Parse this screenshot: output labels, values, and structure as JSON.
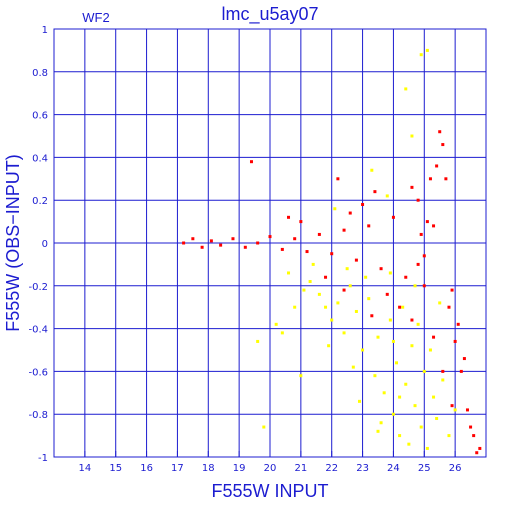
{
  "chart_data": {
    "type": "scatter",
    "title": "lmc_u5ay07",
    "panel_label": "WF2",
    "xlabel": "F555W INPUT",
    "ylabel": "F555W (OBS−INPUT)",
    "xlim": [
      13,
      27
    ],
    "ylim": [
      -1,
      1
    ],
    "x_ticks": [
      14,
      15,
      16,
      17,
      18,
      19,
      20,
      21,
      22,
      23,
      24,
      25,
      26
    ],
    "y_ticks": [
      -1,
      -0.8,
      -0.6,
      -0.4,
      -0.2,
      0,
      0.2,
      0.4,
      0.6,
      0.8,
      1
    ],
    "grid": true,
    "colors": {
      "axis": "#1c1cd0",
      "grid": "#1c1cd0",
      "series_red": "#ff0000",
      "series_yellow": "#ffff00"
    },
    "series": [
      {
        "color": "#ffff00",
        "points": [
          [
            19.6,
            -0.46
          ],
          [
            20.2,
            -0.38
          ],
          [
            20.8,
            -0.3
          ],
          [
            21.1,
            -0.22
          ],
          [
            21.3,
            -0.18
          ],
          [
            21.6,
            -0.24
          ],
          [
            21.8,
            -0.3
          ],
          [
            22.0,
            -0.36
          ],
          [
            22.2,
            -0.28
          ],
          [
            22.4,
            -0.42
          ],
          [
            22.6,
            -0.2
          ],
          [
            22.8,
            -0.32
          ],
          [
            23.0,
            -0.5
          ],
          [
            23.2,
            -0.26
          ],
          [
            23.4,
            -0.62
          ],
          [
            23.5,
            -0.44
          ],
          [
            23.7,
            -0.7
          ],
          [
            23.9,
            -0.36
          ],
          [
            24.0,
            -0.8
          ],
          [
            24.1,
            -0.56
          ],
          [
            24.2,
            -0.9
          ],
          [
            24.3,
            -0.3
          ],
          [
            24.4,
            -0.66
          ],
          [
            24.5,
            -0.94
          ],
          [
            24.6,
            -0.48
          ],
          [
            24.7,
            -0.76
          ],
          [
            24.8,
            -0.38
          ],
          [
            24.9,
            -0.86
          ],
          [
            25.0,
            -0.6
          ],
          [
            25.1,
            -0.96
          ],
          [
            25.2,
            -0.5
          ],
          [
            25.3,
            -0.72
          ],
          [
            25.4,
            -0.82
          ],
          [
            25.6,
            -0.64
          ],
          [
            25.8,
            -0.9
          ],
          [
            26.0,
            -0.78
          ],
          [
            22.1,
            0.16
          ],
          [
            23.3,
            0.34
          ],
          [
            23.8,
            0.22
          ],
          [
            24.6,
            0.5
          ],
          [
            25.1,
            0.9
          ],
          [
            24.9,
            0.88
          ],
          [
            24.4,
            0.72
          ],
          [
            20.4,
            -0.42
          ],
          [
            21.0,
            -0.62
          ],
          [
            21.9,
            -0.48
          ],
          [
            22.7,
            -0.58
          ],
          [
            23.6,
            -0.84
          ],
          [
            24.2,
            -0.72
          ],
          [
            19.8,
            -0.86
          ],
          [
            22.5,
            -0.12
          ],
          [
            23.1,
            -0.16
          ],
          [
            23.9,
            -0.14
          ],
          [
            24.7,
            -0.2
          ],
          [
            25.5,
            -0.28
          ],
          [
            22.9,
            -0.74
          ],
          [
            23.5,
            -0.88
          ],
          [
            21.4,
            -0.1
          ],
          [
            20.6,
            -0.14
          ],
          [
            24.0,
            -0.46
          ]
        ]
      },
      {
        "color": "#ff0000",
        "points": [
          [
            17.2,
            0.0
          ],
          [
            17.5,
            0.02
          ],
          [
            17.8,
            -0.02
          ],
          [
            18.1,
            0.01
          ],
          [
            18.4,
            -0.01
          ],
          [
            18.8,
            0.02
          ],
          [
            19.2,
            -0.02
          ],
          [
            19.6,
            0.0
          ],
          [
            20.0,
            0.03
          ],
          [
            20.4,
            -0.03
          ],
          [
            20.8,
            0.02
          ],
          [
            21.2,
            -0.04
          ],
          [
            21.6,
            0.04
          ],
          [
            22.0,
            -0.05
          ],
          [
            22.4,
            0.06
          ],
          [
            22.8,
            -0.08
          ],
          [
            23.2,
            0.08
          ],
          [
            23.6,
            -0.12
          ],
          [
            24.0,
            0.12
          ],
          [
            24.4,
            -0.16
          ],
          [
            24.8,
            0.2
          ],
          [
            25.0,
            -0.2
          ],
          [
            25.2,
            0.3
          ],
          [
            25.4,
            0.36
          ],
          [
            25.5,
            0.52
          ],
          [
            25.6,
            0.46
          ],
          [
            25.7,
            0.3
          ],
          [
            25.8,
            -0.3
          ],
          [
            26.0,
            -0.46
          ],
          [
            26.2,
            -0.6
          ],
          [
            26.4,
            -0.78
          ],
          [
            26.6,
            -0.9
          ],
          [
            26.8,
            -0.96
          ],
          [
            26.3,
            -0.54
          ],
          [
            26.1,
            -0.38
          ],
          [
            25.9,
            -0.22
          ],
          [
            25.3,
            -0.44
          ],
          [
            24.6,
            -0.36
          ],
          [
            24.2,
            -0.3
          ],
          [
            23.8,
            -0.24
          ],
          [
            22.6,
            0.14
          ],
          [
            23.0,
            0.18
          ],
          [
            23.4,
            0.24
          ],
          [
            24.6,
            0.26
          ],
          [
            25.1,
            0.1
          ],
          [
            25.3,
            0.08
          ],
          [
            21.0,
            0.1
          ],
          [
            20.6,
            0.12
          ],
          [
            19.4,
            0.38
          ],
          [
            22.2,
            0.3
          ],
          [
            23.3,
            -0.34
          ],
          [
            22.4,
            -0.22
          ],
          [
            21.8,
            -0.16
          ],
          [
            25.6,
            -0.6
          ],
          [
            26.5,
            -0.86
          ],
          [
            25.9,
            -0.76
          ],
          [
            26.7,
            -0.98
          ],
          [
            24.9,
            0.04
          ],
          [
            25.0,
            -0.06
          ],
          [
            24.8,
            -0.1
          ]
        ]
      }
    ]
  }
}
